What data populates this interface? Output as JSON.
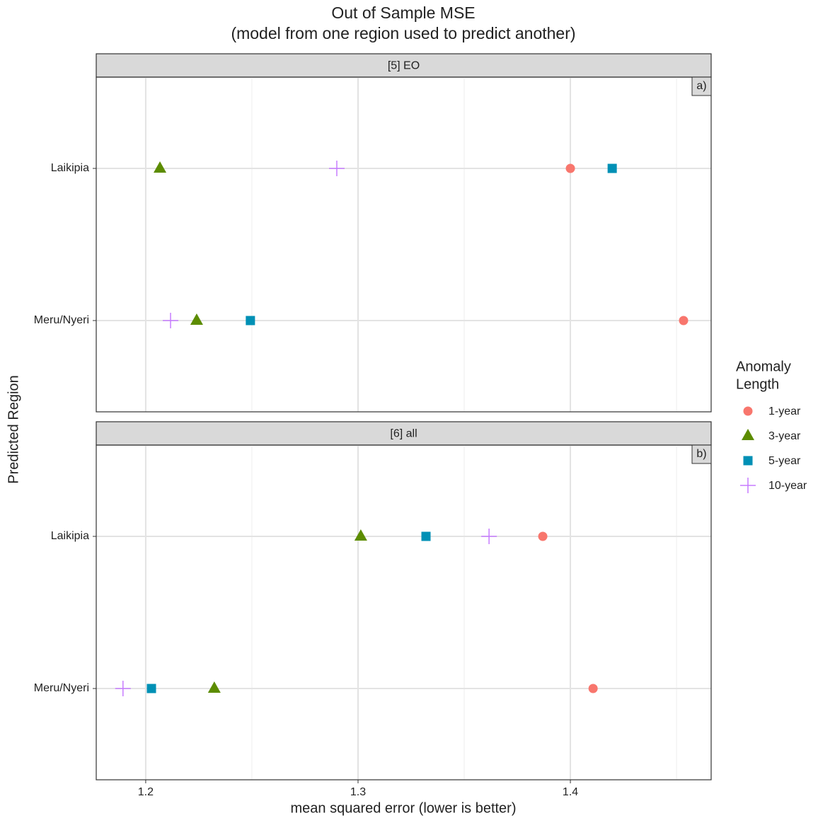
{
  "figure": {
    "title": [
      "Out of Sample MSE",
      "(model from one region used to predict another)"
    ],
    "x_label": "mean squared error (lower is better)",
    "y_label": "Predicted Region",
    "legend_title": [
      "Anomaly",
      "Length"
    ]
  },
  "chart_data": [
    {
      "type": "scatter",
      "strip": "[5] EO",
      "tag": "a)",
      "categories": [
        "Laikipia",
        "Meru/Nyeri"
      ],
      "xlim": [
        1.1767,
        1.4663
      ],
      "xticks": [
        1.2,
        1.3,
        1.4
      ],
      "x_minor_grid": [
        1.25,
        1.35,
        1.45
      ],
      "grid": true,
      "series": [
        {
          "name": "1-year",
          "color": "#F8766D",
          "marker": "circle",
          "values": [
            1.4,
            1.4533
          ]
        },
        {
          "name": "3-year",
          "color": "#5C8C00",
          "marker": "triangle",
          "values": [
            1.2067,
            1.224
          ]
        },
        {
          "name": "5-year",
          "color": "#0090B5",
          "marker": "square",
          "values": [
            1.4197,
            1.2493
          ]
        },
        {
          "name": "10-year",
          "color": "#C77CFF",
          "marker": "plus",
          "values": [
            1.29,
            1.2117
          ]
        }
      ]
    },
    {
      "type": "scatter",
      "strip": "[6] all",
      "tag": "b)",
      "categories": [
        "Laikipia",
        "Meru/Nyeri"
      ],
      "xlim": [
        1.1767,
        1.4663
      ],
      "xticks": [
        1.2,
        1.3,
        1.4
      ],
      "x_minor_grid": [
        1.25,
        1.35,
        1.45
      ],
      "grid": true,
      "series": [
        {
          "name": "1-year",
          "color": "#F8766D",
          "marker": "circle",
          "values": [
            1.387,
            1.4107
          ]
        },
        {
          "name": "3-year",
          "color": "#5C8C00",
          "marker": "triangle",
          "values": [
            1.3013,
            1.2323
          ]
        },
        {
          "name": "5-year",
          "color": "#0090B5",
          "marker": "square",
          "values": [
            1.332,
            1.2027
          ]
        },
        {
          "name": "10-year",
          "color": "#C77CFF",
          "marker": "plus",
          "values": [
            1.3617,
            1.1893
          ]
        }
      ]
    }
  ]
}
